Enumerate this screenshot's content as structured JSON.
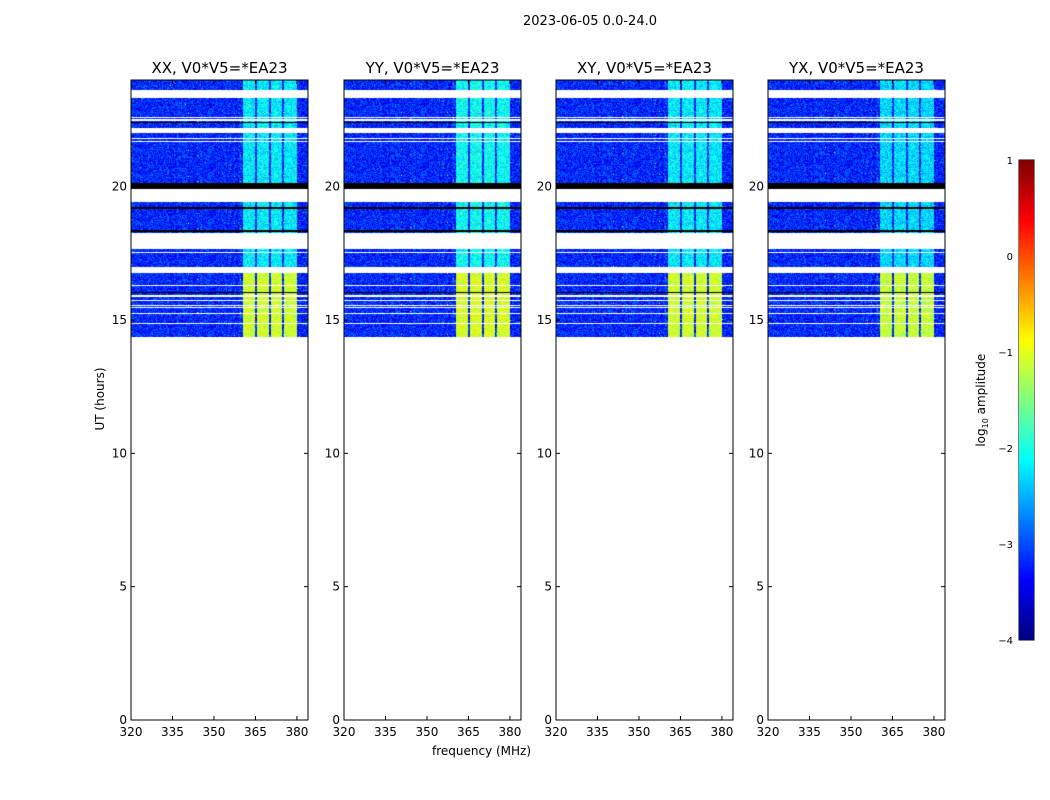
{
  "chart_data": {
    "type": "heatmap",
    "title": "2023-06-05 0.0-24.0",
    "xlabel": "frequency (MHz)",
    "ylabel": "UT (hours)",
    "xlim": [
      320,
      384
    ],
    "ylim": [
      0,
      24
    ],
    "xticks": [
      320,
      335,
      350,
      365,
      380
    ],
    "yticks": [
      0,
      5,
      10,
      15,
      20
    ],
    "colorbar": {
      "label_main": "log",
      "label_sub": "10",
      "label_rest": " amplitude",
      "colormap": "jet",
      "range": [
        -4,
        1
      ],
      "ticks": [
        -4,
        -3,
        -2,
        -1,
        0,
        1
      ],
      "tick_labels": [
        "−4",
        "−3",
        "−2",
        "−1",
        "0",
        "1"
      ]
    },
    "data_time_span": [
      14.38,
      24.0
    ],
    "background_level": -3.2,
    "flagged_rows_white": [
      [
        23.33,
        23.63
      ],
      [
        22.58,
        22.62
      ],
      [
        22.48,
        22.52
      ],
      [
        22.0,
        22.2
      ],
      [
        21.78,
        21.82
      ],
      [
        21.68,
        21.72
      ],
      [
        19.43,
        19.9
      ],
      [
        17.68,
        18.27
      ],
      [
        17.51,
        17.55
      ],
      [
        16.78,
        16.97
      ],
      [
        16.28,
        16.32
      ],
      [
        15.88,
        15.92
      ],
      [
        15.71,
        15.75
      ],
      [
        15.52,
        15.56
      ],
      [
        15.45,
        15.49
      ],
      [
        15.22,
        15.26
      ],
      [
        14.85,
        14.89
      ]
    ],
    "zero_rows_black": [
      [
        22.38,
        22.42
      ],
      [
        19.9,
        20.15
      ],
      [
        19.18,
        19.23
      ],
      [
        18.3,
        18.37
      ],
      [
        16.01,
        16.05
      ]
    ],
    "rfi_bands_mhz": [
      [
        360.4,
        364.8
      ],
      [
        365.4,
        369.8
      ],
      [
        370.6,
        374.6
      ],
      [
        375.2,
        380.0
      ]
    ],
    "rfi_levels": [
      {
        "time_span": [
          14.38,
          16.78
        ],
        "level": -1.1
      },
      {
        "time_span": [
          16.97,
          24.0
        ],
        "level": -2.2
      }
    ],
    "panels": [
      {
        "title": "XX, V0*V5=*EA23",
        "rfi_scale": 1.0
      },
      {
        "title": "YY, V0*V5=*EA23",
        "rfi_scale": 1.05
      },
      {
        "title": "XY, V0*V5=*EA23",
        "rfi_scale": 1.0
      },
      {
        "title": "YX, V0*V5=*EA23",
        "rfi_scale": 0.95
      }
    ]
  }
}
